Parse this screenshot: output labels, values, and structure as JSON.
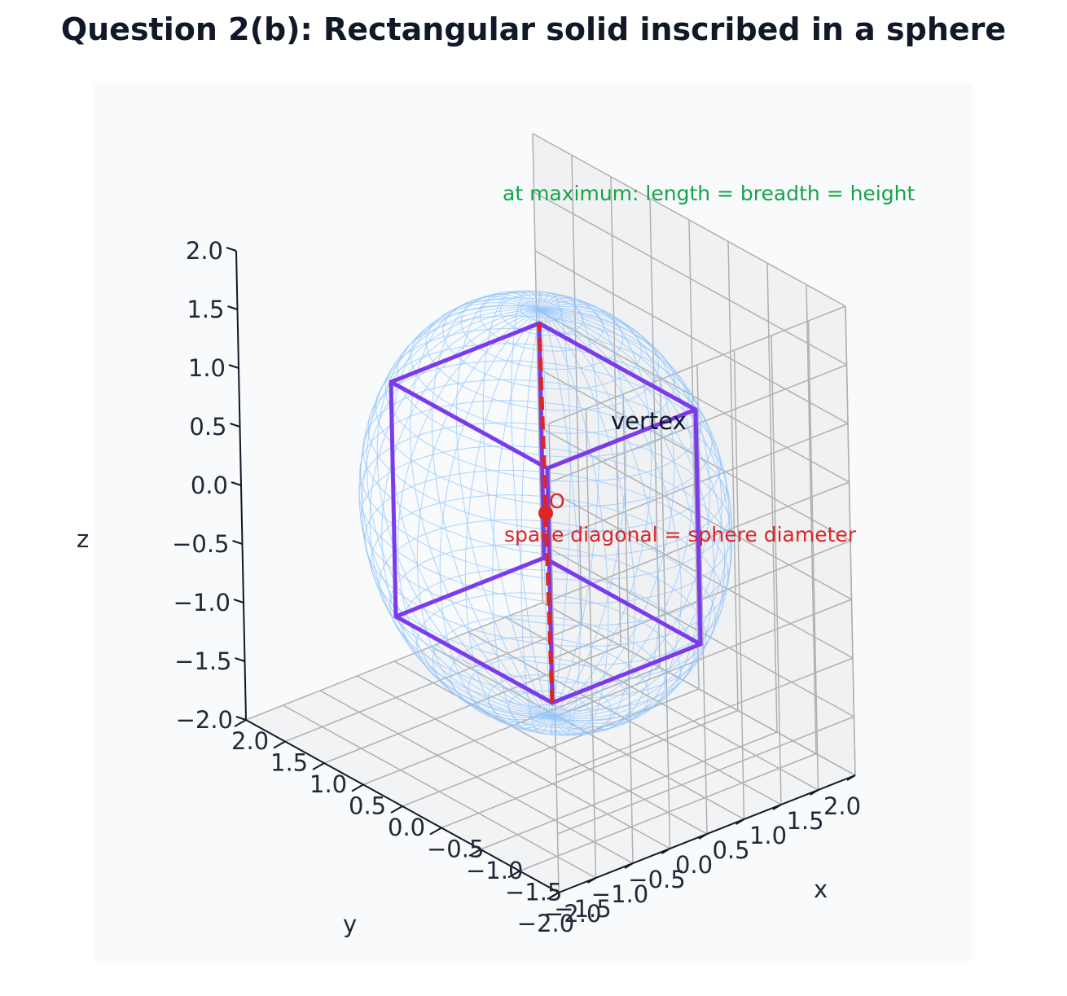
{
  "title": "Question 2(b): Rectangular solid inscribed in a sphere",
  "chart_data": {
    "type": "3d-wireframe",
    "title": "Question 2(b): Rectangular solid inscribed in a sphere",
    "xlabel": "x",
    "ylabel": "y",
    "zlabel": "z",
    "xlim": [
      -2.0,
      2.0
    ],
    "ylim": [
      -2.0,
      2.0
    ],
    "zlim": [
      -2.0,
      2.0
    ],
    "ticks": [
      "−2.0",
      "−1.5",
      "−1.0",
      "−0.5",
      "0.0",
      "0.5",
      "1.0",
      "1.5",
      "2.0"
    ],
    "tick_values": [
      -2.0,
      -1.5,
      -1.0,
      -0.5,
      0.0,
      0.5,
      1.0,
      1.5,
      2.0
    ],
    "grid": true,
    "sphere": {
      "center": [
        0,
        0,
        0
      ],
      "radius": 1.732
    },
    "box": {
      "half_side": 1.0
    },
    "diagonal": {
      "from": [
        0,
        0,
        0
      ],
      "to": [
        1,
        1,
        1
      ]
    },
    "annotations": {
      "maximum": "at maximum: length = breadth = height",
      "vertex": "vertex",
      "diagonal": "space diagonal = sphere diameter",
      "center": "O"
    },
    "colors": {
      "box": "#7c3aed",
      "sphere": "#93c5fd",
      "diagonal": "#dc2626",
      "annotation_max": "#16a34a",
      "annotation_diag": "#dc2626"
    }
  }
}
